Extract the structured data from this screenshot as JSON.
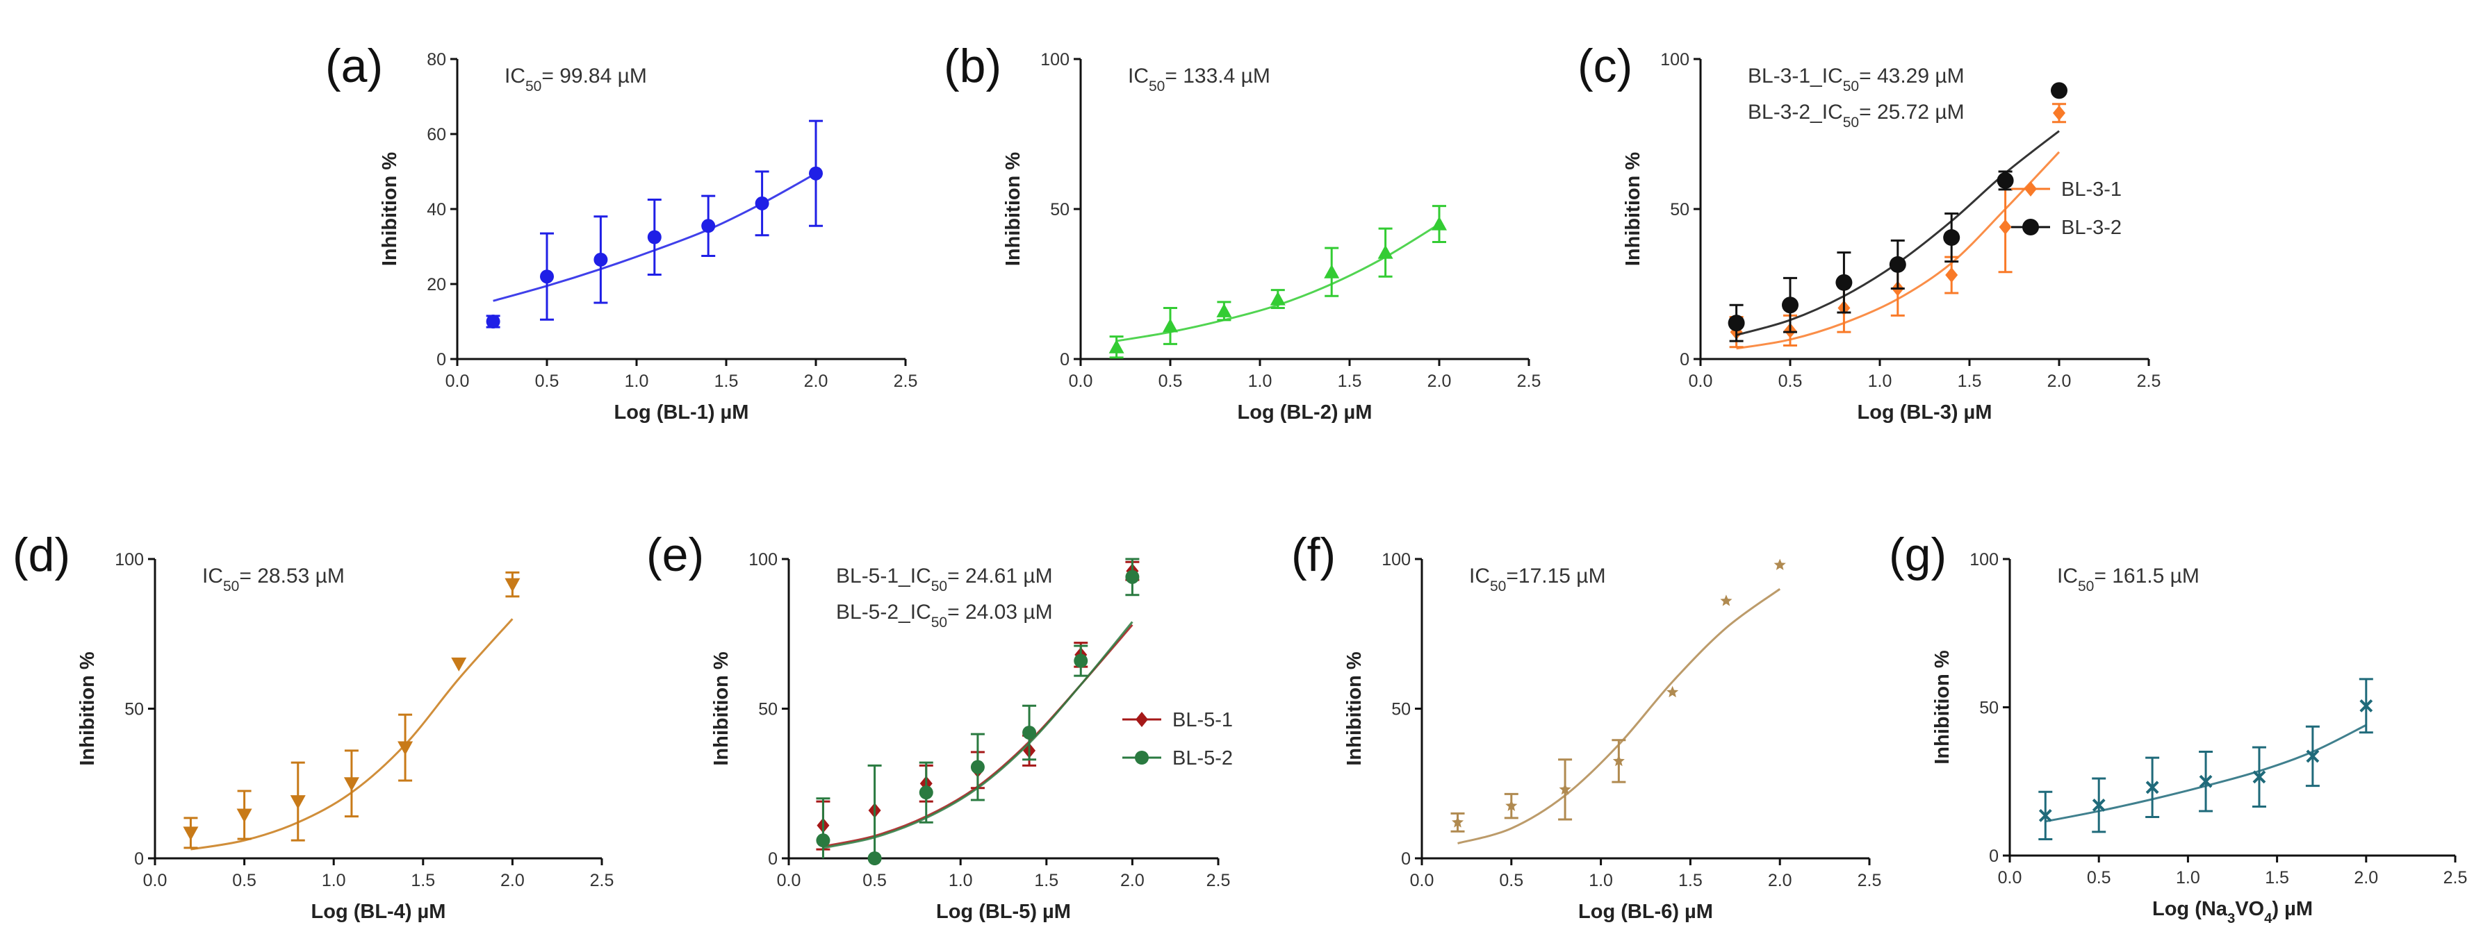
{
  "chart_data": [
    {
      "id": "a",
      "panel_label": "(a)",
      "type": "scatter",
      "title": "",
      "xlabel": {
        "text": "Log (BL-1) µM"
      },
      "ylabel": "Inhibition %",
      "xlim": [
        0,
        2.5
      ],
      "ylim": [
        0,
        80
      ],
      "xticks": [
        0,
        0.5,
        1.0,
        1.5,
        2.0,
        2.5
      ],
      "xtick_labels": [
        "0.0",
        "0.5",
        "1.0",
        "1.5",
        "2.0",
        "2.5"
      ],
      "yticks": [
        0,
        20,
        40,
        60,
        80
      ],
      "ytick_labels": [
        "0",
        "20",
        "40",
        "60",
        "80"
      ],
      "annotations": [
        {
          "parts": [
            {
              "t": "IC"
            },
            {
              "t": "50",
              "sub": true
            },
            {
              "t": "= 99.84 µM"
            }
          ]
        }
      ],
      "series": [
        {
          "name": "BL-1",
          "color": "#1f1fe6",
          "marker": "circle",
          "x": [
            0.2,
            0.5,
            0.8,
            1.1,
            1.4,
            1.7,
            2.0
          ],
          "y": [
            10,
            22,
            26.5,
            32.5,
            35.5,
            41.5,
            49.5
          ],
          "err": [
            1.5,
            11.5,
            11.5,
            10,
            8,
            8.5,
            14
          ],
          "fit": {
            "x": [
              0.2,
              0.5,
              0.8,
              1.1,
              1.4,
              1.7,
              2.0
            ],
            "y": [
              15.5,
              19.5,
              24,
              29,
              34.5,
              41.5,
              49.5
            ]
          }
        }
      ]
    },
    {
      "id": "b",
      "panel_label": "(b)",
      "type": "scatter",
      "title": "",
      "xlabel": {
        "text": "Log (BL-2) µM"
      },
      "ylabel": "Inhibition %",
      "xlim": [
        0,
        2.5
      ],
      "ylim": [
        0,
        100
      ],
      "xticks": [
        0,
        0.5,
        1.0,
        1.5,
        2.0,
        2.5
      ],
      "xtick_labels": [
        "0.0",
        "0.5",
        "1.0",
        "1.5",
        "2.0",
        "2.5"
      ],
      "yticks": [
        0,
        50,
        100
      ],
      "ytick_labels": [
        "0",
        "50",
        "100"
      ],
      "annotations": [
        {
          "parts": [
            {
              "t": "IC"
            },
            {
              "t": "50",
              "sub": true
            },
            {
              "t": "= 133.4 µM"
            }
          ]
        }
      ],
      "series": [
        {
          "name": "BL-2",
          "color": "#33cc33",
          "marker": "triangle",
          "x": [
            0.2,
            0.5,
            0.8,
            1.1,
            1.4,
            1.7,
            2.0
          ],
          "y": [
            4,
            11,
            16,
            20,
            29,
            35.5,
            45
          ],
          "err": [
            3.5,
            6,
            3,
            3,
            8,
            8,
            6
          ],
          "fit": {
            "x": [
              0.2,
              0.5,
              0.8,
              1.1,
              1.4,
              1.7,
              2.0
            ],
            "y": [
              6,
              9,
              13,
              18,
              25,
              34,
              45
            ]
          }
        }
      ]
    },
    {
      "id": "c",
      "panel_label": "(c)",
      "type": "scatter",
      "title": "",
      "xlabel": {
        "text": "Log (BL-3) µM"
      },
      "ylabel": "Inhibition %",
      "xlim": [
        0,
        2.5
      ],
      "ylim": [
        0,
        100
      ],
      "xticks": [
        0,
        0.5,
        1.0,
        1.5,
        2.0,
        2.5
      ],
      "xtick_labels": [
        "0.0",
        "0.5",
        "1.0",
        "1.5",
        "2.0",
        "2.5"
      ],
      "yticks": [
        0,
        50,
        100
      ],
      "ytick_labels": [
        "0",
        "50",
        "100"
      ],
      "annotations": [
        {
          "parts": [
            {
              "t": "BL-3-1_IC"
            },
            {
              "t": "50",
              "sub": true
            },
            {
              "t": "= 43.29 µM"
            }
          ]
        },
        {
          "parts": [
            {
              "t": "BL-3-2_IC"
            },
            {
              "t": "50",
              "sub": true
            },
            {
              "t": "= 25.72 µM"
            }
          ]
        }
      ],
      "legend": {
        "position": "right",
        "entries": [
          "BL-3-1",
          "BL-3-2"
        ]
      },
      "series": [
        {
          "name": "BL-3-1",
          "color": "#f97a28",
          "marker": "diamond",
          "x": [
            0.2,
            0.5,
            0.8,
            1.1,
            1.4,
            1.7,
            2.0
          ],
          "y": [
            9,
            9.5,
            17,
            23.5,
            28,
            44,
            82
          ],
          "err": [
            5,
            5,
            8,
            9,
            6,
            15,
            3
          ],
          "fit": {
            "x": [
              0.2,
              0.5,
              0.8,
              1.1,
              1.4,
              1.7,
              2.0
            ],
            "y": [
              3.5,
              6.5,
              12,
              20,
              32,
              50,
              69
            ]
          }
        },
        {
          "name": "BL-3-2",
          "color": "#111111",
          "marker": "circle-lg",
          "x": [
            0.2,
            0.5,
            0.8,
            1.1,
            1.4,
            1.7,
            2.0
          ],
          "y": [
            12,
            18,
            25.5,
            31.5,
            40.5,
            59.5,
            89.5
          ],
          "err": [
            6,
            9,
            10,
            8,
            8,
            3,
            0
          ],
          "fit": {
            "x": [
              0.2,
              0.5,
              0.8,
              1.1,
              1.4,
              1.7,
              2.0
            ],
            "y": [
              8,
              13,
              21,
              32,
              46,
              62,
              76
            ]
          }
        }
      ]
    },
    {
      "id": "d",
      "panel_label": "(d)",
      "type": "scatter",
      "title": "",
      "xlabel": {
        "text": "Log (BL-4) µM"
      },
      "ylabel": "Inhibition %",
      "xlim": [
        0,
        2.5
      ],
      "ylim": [
        0,
        100
      ],
      "xticks": [
        0,
        0.5,
        1.0,
        1.5,
        2.0,
        2.5
      ],
      "xtick_labels": [
        "0.0",
        "0.5",
        "1.0",
        "1.5",
        "2.0",
        "2.5"
      ],
      "yticks": [
        0,
        50,
        100
      ],
      "ytick_labels": [
        "0",
        "50",
        "100"
      ],
      "annotations": [
        {
          "parts": [
            {
              "t": "IC"
            },
            {
              "t": "50",
              "sub": true
            },
            {
              "t": "= 28.53 µM"
            }
          ]
        }
      ],
      "series": [
        {
          "name": "BL-4",
          "color": "#c87a18",
          "marker": "triangle-down",
          "x": [
            0.2,
            0.5,
            0.8,
            1.1,
            1.4,
            1.7,
            2.0
          ],
          "y": [
            8.5,
            14.5,
            19,
            25,
            37,
            65,
            91.5
          ],
          "err": [
            5,
            8,
            13,
            11,
            11,
            0,
            4
          ],
          "fit": {
            "x": [
              0.2,
              0.5,
              0.8,
              1.1,
              1.4,
              1.7,
              2.0
            ],
            "y": [
              3,
              6,
              12,
              22,
              38,
              60,
              80
            ]
          }
        }
      ]
    },
    {
      "id": "e",
      "panel_label": "(e)",
      "type": "scatter",
      "title": "",
      "xlabel": {
        "text": "Log (BL-5) µM"
      },
      "ylabel": "Inhibition %",
      "xlim": [
        0,
        2.5
      ],
      "ylim": [
        0,
        100
      ],
      "xticks": [
        0,
        0.5,
        1.0,
        1.5,
        2.0,
        2.5
      ],
      "xtick_labels": [
        "0.0",
        "0.5",
        "1.0",
        "1.5",
        "2.0",
        "2.5"
      ],
      "yticks": [
        0,
        50,
        100
      ],
      "ytick_labels": [
        "0",
        "50",
        "100"
      ],
      "annotations": [
        {
          "parts": [
            {
              "t": "BL-5-1_IC"
            },
            {
              "t": "50",
              "sub": true
            },
            {
              "t": "= 24.61 µM"
            }
          ]
        },
        {
          "parts": [
            {
              "t": "BL-5-2_IC"
            },
            {
              "t": "50",
              "sub": true
            },
            {
              "t": "= 24.03 µM"
            }
          ]
        }
      ],
      "legend": {
        "position": "bottom-right",
        "entries": [
          "BL-5-1",
          "BL-5-2"
        ]
      },
      "series": [
        {
          "name": "BL-5-1",
          "color": "#a51818",
          "marker": "diamond",
          "x": [
            0.2,
            0.5,
            0.8,
            1.1,
            1.4,
            1.7,
            2.0
          ],
          "y": [
            11,
            16,
            25,
            29.5,
            36,
            68,
            96
          ],
          "err": [
            8,
            0,
            6,
            6,
            5,
            4,
            3
          ],
          "fit": {
            "x": [
              0.2,
              0.5,
              0.8,
              1.1,
              1.4,
              1.7,
              2.0
            ],
            "y": [
              4,
              7.5,
              14,
              24,
              39,
              58,
              78
            ]
          }
        },
        {
          "name": "BL-5-2",
          "color": "#2a7a40",
          "marker": "circle",
          "x": [
            0.2,
            0.5,
            0.8,
            1.1,
            1.4,
            1.7,
            2.0
          ],
          "y": [
            6,
            0,
            22,
            30.5,
            42,
            66,
            94
          ],
          "err": [
            14,
            31,
            10,
            11,
            9,
            5,
            6
          ],
          "fit": {
            "x": [
              0.2,
              0.5,
              0.8,
              1.1,
              1.4,
              1.7,
              2.0
            ],
            "y": [
              3.5,
              7,
              13.5,
              23.5,
              38.5,
              58,
              79
            ]
          }
        }
      ]
    },
    {
      "id": "f",
      "panel_label": "(f)",
      "type": "scatter",
      "title": "",
      "xlabel": {
        "text": "Log (BL-6) µM"
      },
      "ylabel": "Inhibition %",
      "xlim": [
        0,
        2.5
      ],
      "ylim": [
        0,
        100
      ],
      "xticks": [
        0,
        0.5,
        1.0,
        1.5,
        2.0,
        2.5
      ],
      "xtick_labels": [
        "0.0",
        "0.5",
        "1.0",
        "1.5",
        "2.0",
        "2.5"
      ],
      "yticks": [
        0,
        50,
        100
      ],
      "ytick_labels": [
        "0",
        "50",
        "100"
      ],
      "annotations": [
        {
          "parts": [
            {
              "t": "IC"
            },
            {
              "t": "50",
              "sub": true
            },
            {
              "t": "=17.15 µM"
            }
          ]
        }
      ],
      "series": [
        {
          "name": "BL-6",
          "color": "#b08a50",
          "marker": "star",
          "x": [
            0.2,
            0.5,
            0.8,
            1.1,
            1.4,
            1.7,
            2.0
          ],
          "y": [
            12,
            17.5,
            23,
            32.5,
            55.5,
            86,
            98
          ],
          "err": [
            3,
            4,
            10,
            7,
            0,
            0,
            0
          ],
          "fit": {
            "x": [
              0.2,
              0.5,
              0.8,
              1.1,
              1.4,
              1.7,
              2.0
            ],
            "y": [
              5,
              10,
              21,
              38,
              59,
              77,
              90
            ]
          }
        }
      ]
    },
    {
      "id": "g",
      "panel_label": "(g)",
      "type": "scatter",
      "title": "",
      "xlabel": {
        "parts": [
          {
            "t": "Log (Na"
          },
          {
            "t": "3",
            "sub": true
          },
          {
            "t": "VO"
          },
          {
            "t": "4",
            "sub": true
          },
          {
            "t": ") µM"
          }
        ]
      },
      "ylabel": "Inhibition %",
      "xlim": [
        0,
        2.5
      ],
      "ylim": [
        0,
        100
      ],
      "xticks": [
        0,
        0.5,
        1.0,
        1.5,
        2.0,
        2.5
      ],
      "xtick_labels": [
        "0.0",
        "0.5",
        "1.0",
        "1.5",
        "2.0",
        "2.5"
      ],
      "yticks": [
        0,
        50,
        100
      ],
      "ytick_labels": [
        "0",
        "50",
        "100"
      ],
      "annotations": [
        {
          "parts": [
            {
              "t": "IC"
            },
            {
              "t": "50",
              "sub": true
            },
            {
              "t": "= 161.5 µM"
            }
          ]
        }
      ],
      "series": [
        {
          "name": "Na3VO4",
          "color": "#1f6a7a",
          "marker": "x",
          "x": [
            0.2,
            0.5,
            0.8,
            1.1,
            1.4,
            1.7,
            2.0
          ],
          "y": [
            13.5,
            17,
            23,
            25,
            26.5,
            33.5,
            50.5
          ],
          "err": [
            8,
            9,
            10,
            10,
            10,
            10,
            9
          ],
          "fit": {
            "x": [
              0.2,
              0.5,
              0.8,
              1.1,
              1.4,
              1.7,
              2.0
            ],
            "y": [
              11.5,
              15,
              19,
              23.5,
              28.5,
              35,
              44
            ]
          }
        }
      ]
    }
  ]
}
